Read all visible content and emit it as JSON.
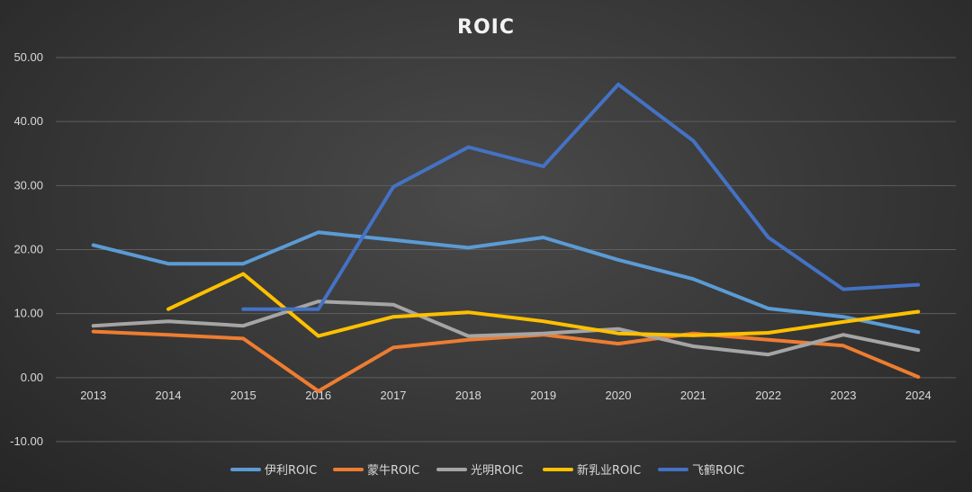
{
  "chart_data": {
    "type": "line",
    "title": "ROIC",
    "xlabel": "",
    "ylabel": "",
    "categories": [
      "2013",
      "2014",
      "2015",
      "2016",
      "2017",
      "2018",
      "2019",
      "2020",
      "2021",
      "2022",
      "2023",
      "2024"
    ],
    "ylim": [
      -10,
      50
    ],
    "yticks": [
      "50.00",
      "40.00",
      "30.00",
      "20.00",
      "10.00",
      "0.00",
      "-10.00"
    ],
    "ytick_values": [
      50,
      40,
      30,
      20,
      10,
      0,
      -10
    ],
    "grid": true,
    "legend_position": "bottom",
    "series": [
      {
        "name": "伊利ROIC",
        "color": "#5b9bd5",
        "values": [
          20.7,
          17.8,
          17.8,
          22.7,
          21.5,
          20.3,
          21.9,
          18.4,
          15.4,
          10.8,
          9.5,
          7.1
        ]
      },
      {
        "name": "蒙牛ROIC",
        "color": "#ed7d31",
        "values": [
          7.2,
          6.7,
          6.1,
          -2.1,
          4.7,
          5.9,
          6.7,
          5.3,
          6.9,
          5.9,
          5.0,
          0.1
        ]
      },
      {
        "name": "光明ROIC",
        "color": "#a5a5a5",
        "values": [
          8.1,
          8.8,
          8.1,
          11.9,
          11.4,
          6.5,
          6.9,
          7.6,
          4.9,
          3.6,
          6.7,
          4.3
        ]
      },
      {
        "name": "新乳业ROIC",
        "color": "#ffc000",
        "values": [
          null,
          10.7,
          16.2,
          6.5,
          9.5,
          10.2,
          8.8,
          6.9,
          6.6,
          7.0,
          8.7,
          10.3
        ]
      },
      {
        "name": "飞鹤ROIC",
        "color": "#4472c4",
        "values": [
          null,
          null,
          10.7,
          10.7,
          29.8,
          36.0,
          33.0,
          45.8,
          37.0,
          21.9,
          13.8,
          14.5
        ]
      }
    ]
  }
}
